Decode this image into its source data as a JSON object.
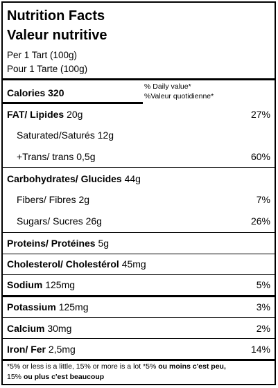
{
  "title_en": "Nutrition Facts",
  "title_fr": "Valeur nutritive",
  "serving_en": "Per 1 Tart  (100g)",
  "serving_fr": "Pour 1 Tarte (100g)",
  "calories": {
    "label": "Calories 320"
  },
  "dv_header": {
    "line1": "% Daily value*",
    "line2": "%Valeur quotidienne*"
  },
  "nutrients": {
    "fat": {
      "label": "FAT/ Lipides",
      "amount": " 20g",
      "pct": "27%"
    },
    "saturated": {
      "label": "Saturated/Saturés  12g",
      "pct": ""
    },
    "trans": {
      "label": "+Trans/ trans 0,5g",
      "pct": "60%"
    },
    "carb": {
      "label": "Carbohydrates/ Glucides",
      "amount": " 44g",
      "pct": ""
    },
    "fiber": {
      "label": "Fibers/ Fibres 2g",
      "pct": "7%"
    },
    "sugars": {
      "label": "Sugars/ Sucres  26g",
      "pct": "26%"
    },
    "protein": {
      "label": "Proteins/ Protéines",
      "amount": "  5g",
      "pct": ""
    },
    "cholesterol": {
      "label": "Cholesterol/ Cholestérol",
      "amount": " 45mg",
      "pct": ""
    },
    "sodium": {
      "label": "Sodium",
      "amount": "  125mg",
      "pct": "5%"
    },
    "potassium": {
      "label": "Potassium",
      "amount": " 125mg",
      "pct": "3%"
    },
    "calcium": {
      "label": "Calcium",
      "amount": " 30mg",
      "pct": "2%"
    },
    "iron": {
      "label": "Iron/ Fer",
      "amount": "  2,5mg",
      "pct": "14%"
    }
  },
  "footnote": {
    "part1": "*5% or less is a little, 15% or more is a lot *5% ",
    "part2": "ou moins c'est peu,",
    "part3": "15% ",
    "part4": "ou plus c'est beaucoup"
  }
}
